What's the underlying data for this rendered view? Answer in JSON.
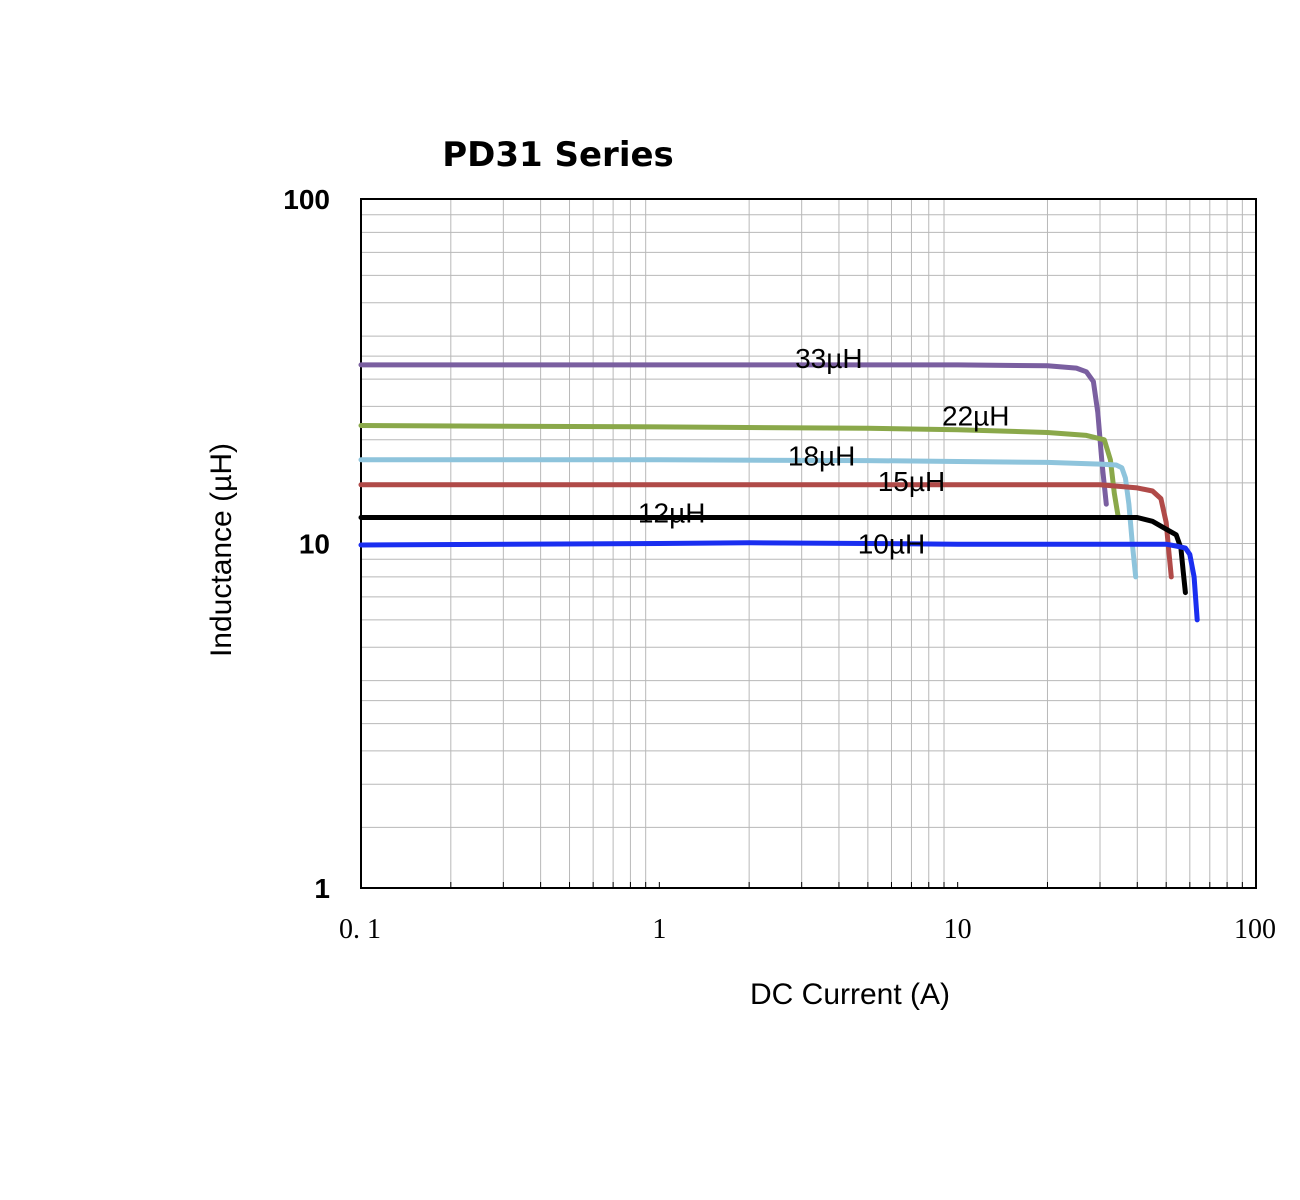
{
  "chart_data": {
    "type": "line",
    "title": "PD31 Series",
    "xlabel": "DC Current (A)",
    "ylabel": "Inductance (µH)",
    "x_scale": "log",
    "y_scale": "log",
    "xlim": [
      0.1,
      100
    ],
    "ylim": [
      1,
      100
    ],
    "grid": true,
    "x_ticks": [
      {
        "value": 0.1,
        "label": "0. 1"
      },
      {
        "value": 1,
        "label": "1"
      },
      {
        "value": 10,
        "label": "10"
      },
      {
        "value": 100,
        "label": "100"
      }
    ],
    "y_ticks": [
      {
        "value": 1,
        "label": "1"
      },
      {
        "value": 10,
        "label": "10"
      },
      {
        "value": 100,
        "label": "100"
      }
    ],
    "series": [
      {
        "name": "33µH",
        "color": "#7a5fa0",
        "x": [
          0.1,
          1,
          5,
          10,
          20,
          25,
          27,
          28.5,
          29.5,
          30.5,
          31.5
        ],
        "y": [
          33,
          33,
          33,
          33,
          32.8,
          32.3,
          31.5,
          29.5,
          24,
          17,
          13
        ]
      },
      {
        "name": "22µH",
        "color": "#8aa84a",
        "x": [
          0.1,
          1,
          5,
          10,
          20,
          27,
          31,
          32.5,
          33.5,
          34.5
        ],
        "y": [
          22,
          21.8,
          21.6,
          21.4,
          21,
          20.6,
          20,
          17.5,
          14,
          12
        ]
      },
      {
        "name": "18µH",
        "color": "#8ec4dc",
        "x": [
          0.1,
          1,
          5,
          10,
          20,
          30,
          34,
          35.5,
          36.5,
          37.5,
          38.5,
          39.5
        ],
        "y": [
          17.5,
          17.5,
          17.4,
          17.3,
          17.2,
          17,
          16.9,
          16.6,
          15.5,
          13,
          10,
          8
        ]
      },
      {
        "name": "15µH",
        "color": "#b04a48",
        "x": [
          0.1,
          1,
          5,
          10,
          20,
          30,
          40,
          45,
          48,
          50,
          51,
          52
        ],
        "y": [
          14.8,
          14.8,
          14.8,
          14.8,
          14.8,
          14.8,
          14.5,
          14.2,
          13.5,
          11.5,
          9.5,
          8
        ]
      },
      {
        "name": "12µH",
        "color": "#000000",
        "x": [
          0.1,
          1,
          5,
          10,
          20,
          30,
          40,
          45,
          50,
          54,
          56,
          57,
          58
        ],
        "y": [
          11.9,
          11.9,
          11.9,
          11.9,
          11.9,
          11.9,
          11.9,
          11.6,
          11,
          10.6,
          9.7,
          8.3,
          7.2
        ]
      },
      {
        "name": "10µH",
        "color": "#1a2ef0",
        "x": [
          0.1,
          1,
          2,
          5,
          10,
          20,
          30,
          40,
          50,
          55,
          58,
          60,
          62,
          63.5
        ],
        "y": [
          9.9,
          10,
          10.05,
          10,
          9.95,
          9.95,
          9.95,
          9.95,
          9.95,
          9.8,
          9.7,
          9.3,
          8,
          6
        ]
      }
    ]
  }
}
